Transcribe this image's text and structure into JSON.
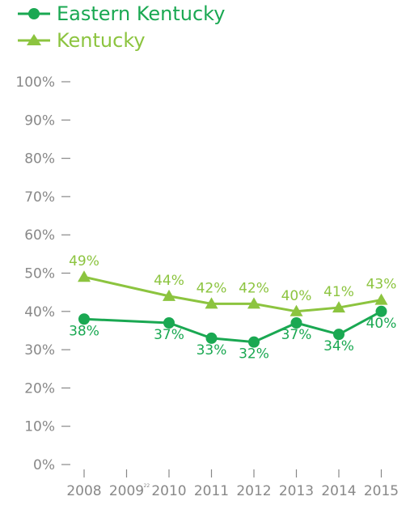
{
  "chart_data": {
    "type": "line",
    "categories": [
      "2008",
      "2009",
      "2010",
      "2011",
      "2012",
      "2013",
      "2014",
      "2015"
    ],
    "footnote_mark": "22",
    "series": [
      {
        "name": "Eastern Kentucky",
        "marker": "circle",
        "color": "#1aa852",
        "values": [
          38,
          null,
          37,
          33,
          32,
          37,
          34,
          40
        ],
        "labels": [
          "38%",
          "",
          "37%",
          "33%",
          "32%",
          "37%",
          "34%",
          "40%"
        ]
      },
      {
        "name": "Kentucky",
        "marker": "triangle",
        "color": "#8cc43f",
        "values": [
          49,
          null,
          44,
          42,
          42,
          40,
          41,
          43
        ],
        "labels": [
          "49%",
          "",
          "44%",
          "42%",
          "42%",
          "40%",
          "41%",
          "43%"
        ]
      }
    ],
    "ylim": [
      0,
      100
    ],
    "y_ticks": [
      "0%",
      "10%",
      "20%",
      "30%",
      "40%",
      "50%",
      "60%",
      "70%",
      "80%",
      "90%",
      "100%"
    ],
    "legend_position": "top-left",
    "grid": false
  }
}
